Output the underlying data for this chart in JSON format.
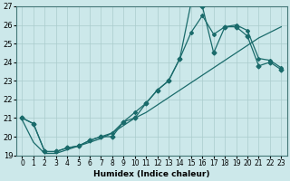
{
  "xlabel": "Humidex (Indice chaleur)",
  "background_color": "#cce8ea",
  "grid_color": "#aacccc",
  "line_color": "#1a6b6b",
  "x_values": [
    0,
    1,
    2,
    3,
    4,
    5,
    6,
    7,
    8,
    9,
    10,
    11,
    12,
    13,
    14,
    15,
    16,
    17,
    18,
    19,
    20,
    21,
    22,
    23
  ],
  "y_spiky": [
    21.0,
    20.7,
    19.2,
    19.2,
    19.4,
    19.5,
    19.8,
    20.0,
    20.0,
    20.8,
    21.0,
    21.8,
    22.5,
    23.0,
    24.2,
    27.2,
    27.0,
    24.5,
    25.9,
    25.9,
    25.4,
    23.8,
    24.0,
    23.6
  ],
  "y_smooth": [
    20.9,
    19.7,
    19.1,
    19.1,
    19.3,
    19.5,
    19.7,
    19.9,
    20.2,
    20.6,
    21.0,
    21.3,
    21.7,
    22.1,
    22.5,
    22.9,
    23.3,
    23.7,
    24.1,
    24.5,
    24.9,
    25.3,
    25.6,
    25.9
  ],
  "y_third": [
    21.0,
    20.7,
    19.2,
    19.2,
    19.4,
    19.5,
    19.8,
    20.0,
    20.2,
    20.8,
    21.3,
    21.8,
    22.5,
    23.0,
    24.2,
    25.6,
    26.5,
    25.5,
    25.9,
    26.0,
    25.7,
    24.2,
    24.1,
    23.7
  ],
  "ylim": [
    19,
    27
  ],
  "xlim": [
    -0.5,
    23.5
  ],
  "yticks": [
    19,
    20,
    21,
    22,
    23,
    24,
    25,
    26,
    27
  ],
  "xticks": [
    0,
    1,
    2,
    3,
    4,
    5,
    6,
    7,
    8,
    9,
    10,
    11,
    12,
    13,
    14,
    15,
    16,
    17,
    18,
    19,
    20,
    21,
    22,
    23
  ],
  "xlabel_fontsize": 6.5,
  "tick_fontsize": 5.5,
  "linewidth": 0.9,
  "markersize": 2.5
}
